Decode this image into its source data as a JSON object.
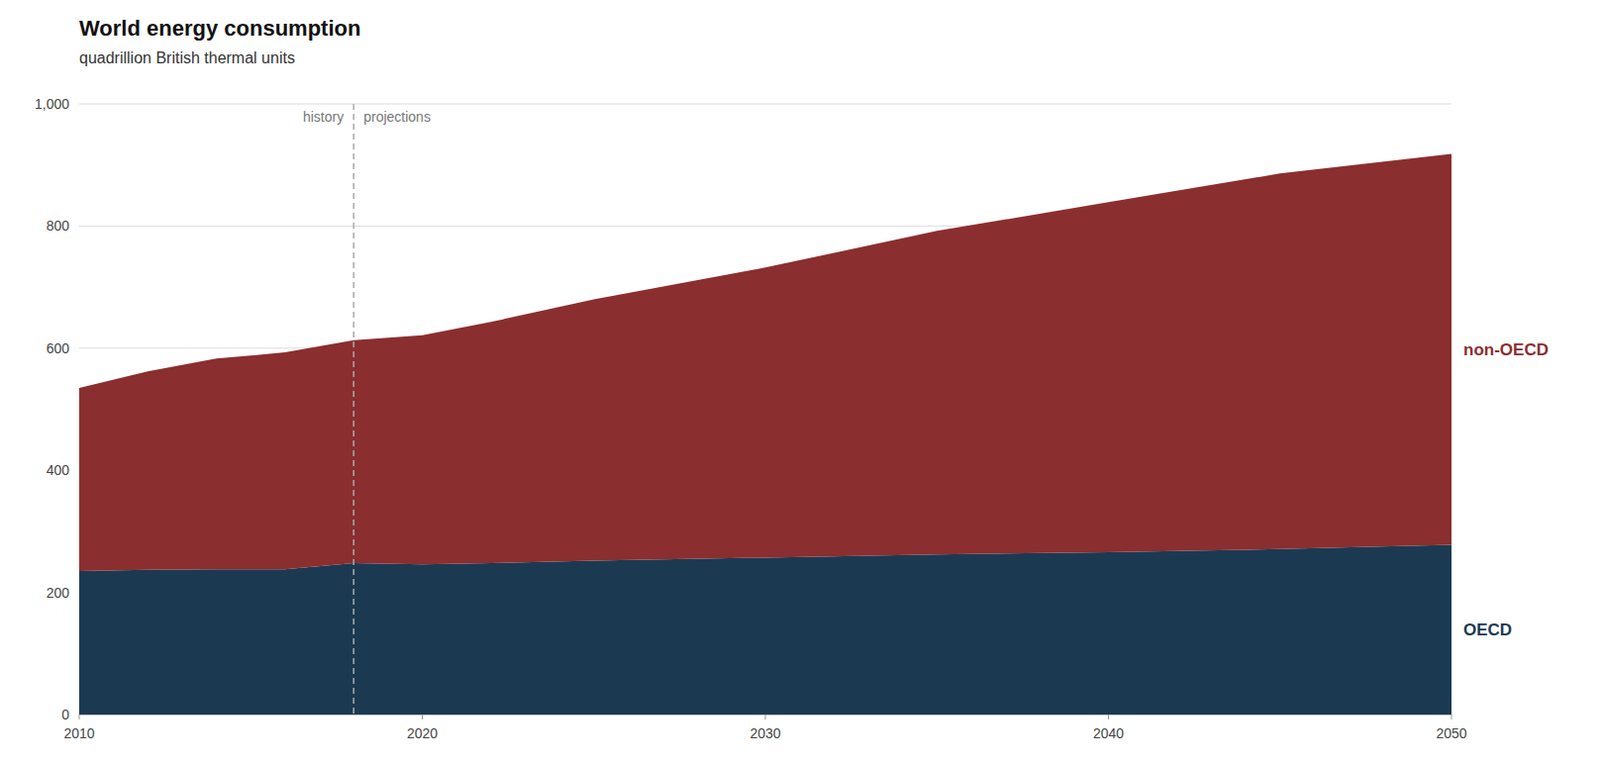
{
  "chart_data": {
    "type": "area",
    "stacked": true,
    "title": "World energy consumption",
    "subtitle": "quadrillion British thermal units",
    "x": [
      2010,
      2012,
      2014,
      2016,
      2018,
      2020,
      2022,
      2025,
      2030,
      2035,
      2040,
      2045,
      2050
    ],
    "series": [
      {
        "name": "OECD",
        "color": "#1b3a52",
        "values": [
          235,
          237,
          238,
          238,
          248,
          246,
          248,
          252,
          257,
          262,
          266,
          271,
          278
        ]
      },
      {
        "name": "non-OECD",
        "color": "#8b2e30",
        "values": [
          300,
          325,
          345,
          355,
          365,
          375,
          395,
          428,
          475,
          530,
          573,
          615,
          640
        ]
      }
    ],
    "xlim": [
      2010,
      2050
    ],
    "xticks": [
      2010,
      2020,
      2030,
      2040,
      2050
    ],
    "ylim": [
      0,
      1000
    ],
    "yticks": [
      0,
      200,
      400,
      600,
      800,
      {
        "value": 1000,
        "label": "1,000"
      }
    ],
    "grid": true,
    "annotations": [
      {
        "type": "vline",
        "x": 2018,
        "left_label": "history",
        "right_label": "projections"
      }
    ]
  }
}
